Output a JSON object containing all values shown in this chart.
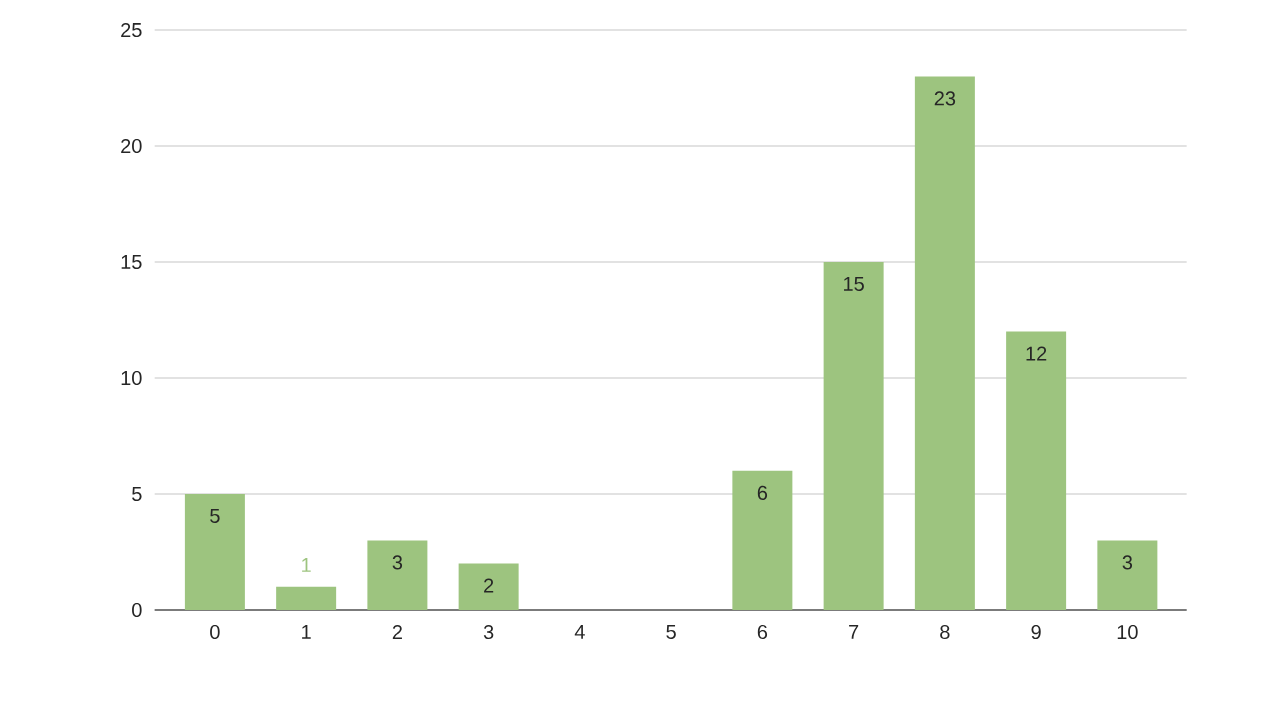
{
  "chart_data": {
    "type": "bar",
    "categories": [
      "0",
      "1",
      "2",
      "3",
      "4",
      "5",
      "6",
      "7",
      "8",
      "9",
      "10"
    ],
    "values": [
      5,
      1,
      3,
      2,
      0,
      0,
      6,
      15,
      23,
      12,
      3
    ],
    "value_labels": [
      "5",
      "1",
      "3",
      "2",
      null,
      null,
      "6",
      "15",
      "23",
      "12",
      "3"
    ],
    "color": "#9dc47f",
    "ylim": [
      0,
      25
    ],
    "yticks": [
      0,
      5,
      10,
      15,
      20,
      25
    ],
    "grid": "y"
  }
}
